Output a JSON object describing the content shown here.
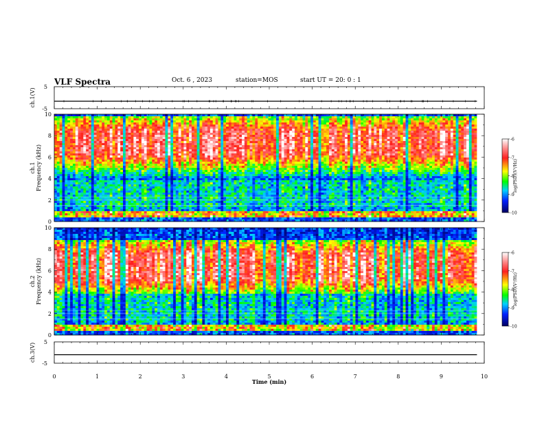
{
  "header": {
    "title": "VLF Spectra",
    "date": "Oct. 6 , 2023",
    "station": "station=MOS",
    "start_ut": "start UT =  20: 0  : 1"
  },
  "chart_data": [
    {
      "type": "line",
      "id": "ch1-voltage",
      "ylabel": "ch.1(V)",
      "ylim": [
        -5,
        5
      ],
      "y_ticks": [
        "5",
        "-5"
      ],
      "x": [
        0,
        1,
        2,
        3,
        4,
        5,
        6,
        7,
        8,
        9,
        9.83
      ],
      "values": [
        -1.6,
        -1.6,
        -1.6,
        -1.6,
        -1.6,
        -1.6,
        -1.6,
        -1.6,
        -1.6,
        -1.6,
        -1.6
      ]
    },
    {
      "type": "heatmap",
      "id": "ch1-spectrogram",
      "ylabel_line1": "ch.1",
      "ylabel_line2": "Frequency (kHz)",
      "ylim": [
        0,
        10
      ],
      "y_ticks": [
        "0",
        "2",
        "4",
        "6",
        "8",
        "10"
      ],
      "xlim": [
        0,
        10
      ],
      "data_end_min": 9.83,
      "strong_band_khz": [
        5.5,
        9.2
      ],
      "colorbar": {
        "label": "log(PSD)(V²/Hz)",
        "range": [
          -10,
          -6
        ],
        "ticks": [
          "-6",
          "-7",
          "-8",
          "-9",
          "-10"
        ],
        "colors": [
          "#ffffff",
          "#ff3030",
          "#ffff00",
          "#00ff00",
          "#00c0ff",
          "#0020ff",
          "#000080"
        ]
      }
    },
    {
      "type": "heatmap",
      "id": "ch2-spectrogram",
      "ylabel_line1": "ch.2",
      "ylabel_line2": "Frequency (kHz)",
      "ylim": [
        0,
        10
      ],
      "y_ticks": [
        "0",
        "2",
        "4",
        "6",
        "8",
        "10"
      ],
      "xlim": [
        0,
        10
      ],
      "data_end_min": 9.83,
      "strong_band_khz": [
        4.5,
        8.3
      ],
      "colorbar": {
        "label": "log(PSD)(V²/Hz)",
        "range": [
          -10,
          -6
        ],
        "ticks": [
          "-6",
          "-7",
          "-8",
          "-9",
          "-10"
        ],
        "colors": [
          "#ffffff",
          "#ff3030",
          "#ffff00",
          "#00ff00",
          "#00c0ff",
          "#0020ff",
          "#000080"
        ]
      }
    },
    {
      "type": "line",
      "id": "ch3-voltage",
      "ylabel": "ch.3(V)",
      "ylim": [
        -5,
        5
      ],
      "y_ticks": [
        "5",
        "-5"
      ],
      "x": [
        0,
        1,
        2,
        3,
        4,
        5,
        6,
        7,
        8,
        9,
        9.83
      ],
      "values": [
        -1.0,
        -1.0,
        -1.0,
        -1.0,
        -1.0,
        -1.0,
        -1.0,
        -1.0,
        -1.0,
        -1.0,
        -1.0
      ]
    }
  ],
  "x_axis": {
    "label": "Time (min)",
    "ticks": [
      "0",
      "1",
      "2",
      "3",
      "4",
      "5",
      "6",
      "7",
      "8",
      "9",
      "10"
    ]
  }
}
